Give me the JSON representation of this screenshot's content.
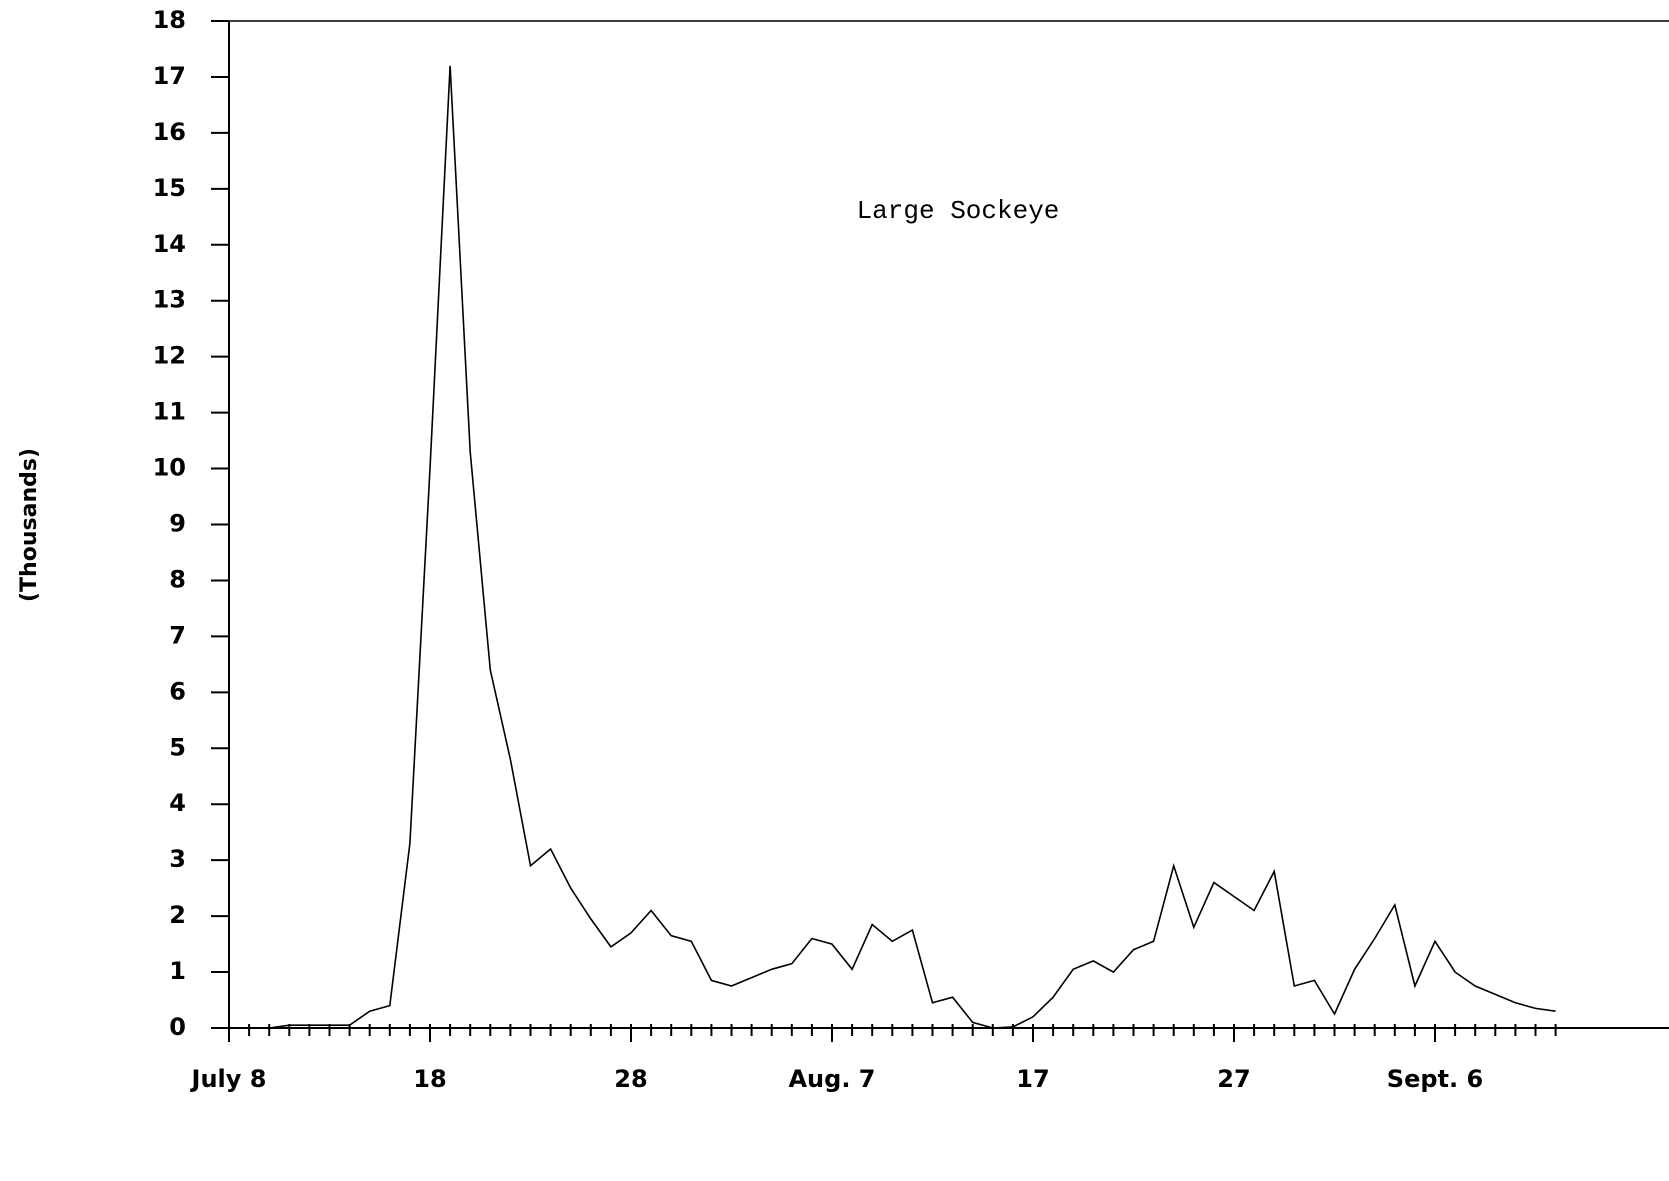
{
  "chart_data": {
    "type": "line",
    "annotation": "Large Sockeye",
    "y_label": "(Thousands)",
    "categories": [
      "July 8",
      null,
      null,
      null,
      null,
      null,
      null,
      null,
      null,
      null,
      "18",
      null,
      null,
      null,
      null,
      null,
      null,
      null,
      null,
      null,
      "28",
      null,
      null,
      null,
      null,
      null,
      null,
      null,
      null,
      null,
      "Aug. 7",
      null,
      null,
      null,
      null,
      null,
      null,
      null,
      null,
      null,
      "17",
      null,
      null,
      null,
      null,
      null,
      null,
      null,
      null,
      null,
      "27",
      null,
      null,
      null,
      null,
      null,
      null,
      null,
      null,
      null,
      "Sept. 6",
      null,
      null,
      null,
      null,
      null,
      null
    ],
    "values": [
      0,
      0,
      0,
      0.05,
      0.05,
      0.05,
      0.05,
      0.3,
      0.4,
      3.3,
      10,
      17.2,
      10.3,
      6.4,
      4.8,
      2.9,
      3.2,
      2.5,
      1.95,
      1.45,
      1.7,
      2.1,
      1.65,
      1.55,
      0.85,
      0.75,
      0.9,
      1.05,
      1.15,
      1.6,
      1.5,
      1.05,
      1.85,
      1.55,
      1.75,
      0.45,
      0.55,
      0.1,
      0,
      0.02,
      0.2,
      0.55,
      1.05,
      1.2,
      1.0,
      1.4,
      1.55,
      2.9,
      1.8,
      2.6,
      2.35,
      2.1,
      2.8,
      0.75,
      0.85,
      0.25,
      1.05,
      1.6,
      2.2,
      0.75,
      1.55,
      1.0,
      0.75,
      0.6,
      0.45,
      0.35,
      0.3
    ],
    "color": "#000000",
    "ylim": [
      0,
      18
    ],
    "yticks": [
      0,
      1,
      2,
      3,
      4,
      5,
      6,
      7,
      8,
      9,
      10,
      11,
      12,
      13,
      14,
      15,
      16,
      17,
      18
    ],
    "grid": false
  }
}
